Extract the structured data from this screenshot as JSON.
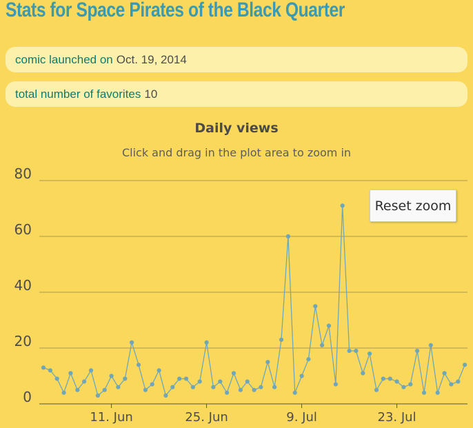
{
  "page": {
    "title": "Stats for Space Pirates of the Black Quarter"
  },
  "pills": [
    {
      "label": "comic launched on",
      "value": "Oct. 19, 2014"
    },
    {
      "label": "total number of favorites",
      "value": "10"
    }
  ],
  "chart": {
    "title": "Daily views",
    "subtitle": "Click and drag in the plot area to zoom in",
    "reset_button_label": "Reset zoom"
  },
  "chart_data": {
    "type": "line",
    "title": "Daily views",
    "subtitle": "Click and drag in the plot area to zoom in",
    "x": [
      "Jun 1",
      "Jun 2",
      "Jun 3",
      "Jun 4",
      "Jun 5",
      "Jun 6",
      "Jun 7",
      "Jun 8",
      "Jun 9",
      "Jun 10",
      "Jun 11",
      "Jun 12",
      "Jun 13",
      "Jun 14",
      "Jun 15",
      "Jun 16",
      "Jun 17",
      "Jun 18",
      "Jun 19",
      "Jun 20",
      "Jun 21",
      "Jun 22",
      "Jun 23",
      "Jun 24",
      "Jun 25",
      "Jun 26",
      "Jun 27",
      "Jun 28",
      "Jun 29",
      "Jun 30",
      "Jul 1",
      "Jul 2",
      "Jul 3",
      "Jul 4",
      "Jul 5",
      "Jul 6",
      "Jul 7",
      "Jul 8",
      "Jul 9",
      "Jul 10",
      "Jul 11",
      "Jul 12",
      "Jul 13",
      "Jul 14",
      "Jul 15",
      "Jul 16",
      "Jul 17",
      "Jul 18",
      "Jul 19",
      "Jul 20",
      "Jul 21",
      "Jul 22",
      "Jul 23",
      "Jul 24",
      "Jul 25",
      "Jul 26",
      "Jul 27",
      "Jul 28",
      "Jul 29",
      "Jul 30",
      "Jul 31",
      "Aug 1",
      "Aug 2"
    ],
    "values": [
      13,
      12,
      9,
      4,
      11,
      5,
      8,
      12,
      3,
      5,
      10,
      6,
      9,
      22,
      14,
      5,
      7,
      12,
      3,
      6,
      9,
      9,
      6,
      8,
      22,
      6,
      8,
      4,
      11,
      5,
      8,
      5,
      6,
      15,
      6,
      23,
      60,
      4,
      10,
      16,
      35,
      21,
      28,
      7,
      71,
      19,
      19,
      11,
      18,
      5,
      9,
      9,
      8,
      6,
      7,
      19,
      4,
      21,
      4,
      11,
      7,
      8,
      14
    ],
    "ylim": [
      0,
      80
    ],
    "yticks": [
      0,
      20,
      40,
      60,
      80
    ],
    "xticks": [
      {
        "label": "11. Jun",
        "index": 10
      },
      {
        "label": "25. Jun",
        "index": 24
      },
      {
        "label": "9. Jul",
        "index": 38
      },
      {
        "label": "23. Jul",
        "index": 52
      }
    ],
    "grid": "horizontal",
    "legend": "none",
    "line_color": "#6fa7b9",
    "marker_color": "#6fa7b9",
    "grid_color": "#ab9a4f",
    "axis_color": "#53534a",
    "label_color": "#4d4d4d"
  },
  "colors": {
    "background": "#f9d85c",
    "pill_background": "#fcf0ab",
    "title": "#3b9ab0",
    "pill_label": "#0f7b6e",
    "pill_value": "#4c4c4c",
    "button_background": "#f9f9f9"
  }
}
